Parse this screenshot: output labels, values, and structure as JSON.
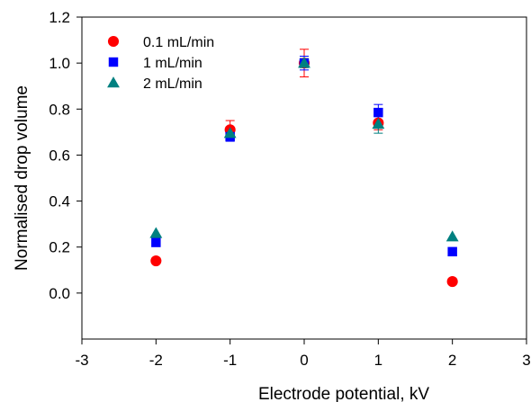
{
  "chart_data": {
    "type": "scatter",
    "xlabel": "Electrode potential, kV",
    "ylabel": "Normalised drop volume",
    "xlim": [
      -3,
      3
    ],
    "ylim": [
      -0.2,
      1.2
    ],
    "xticks": [
      -3,
      -2,
      -1,
      0,
      1,
      2,
      3
    ],
    "yticks": [
      0.0,
      0.2,
      0.4,
      0.6,
      0.8,
      1.0,
      1.2
    ],
    "x_tick_labels": [
      "-3",
      "-2",
      "-1",
      "0",
      "1",
      "2",
      "3"
    ],
    "y_tick_labels": [
      "0.0",
      "0.2",
      "0.4",
      "0.6",
      "0.8",
      "1.0",
      "1.2"
    ],
    "legend_position": "top-left",
    "grid": false,
    "series": [
      {
        "name": "0.1 mL/min",
        "marker": "circle",
        "color": "#ff0000",
        "x": [
          -2,
          -1,
          0,
          1,
          2
        ],
        "y": [
          0.14,
          0.71,
          1.0,
          0.74,
          0.05
        ],
        "err": [
          0.0,
          0.04,
          0.06,
          0.03,
          0.0
        ]
      },
      {
        "name": "1 mL/min",
        "marker": "square",
        "color": "#0000ff",
        "x": [
          -2,
          -1,
          0,
          1,
          2
        ],
        "y": [
          0.22,
          0.68,
          1.0,
          0.785,
          0.18
        ],
        "err": [
          0.0,
          0.02,
          0.03,
          0.035,
          0.0
        ]
      },
      {
        "name": "2 mL/min",
        "marker": "triangle",
        "color": "#008080",
        "x": [
          -2,
          -1,
          0,
          1,
          2
        ],
        "y": [
          0.26,
          0.695,
          1.0,
          0.735,
          0.245
        ],
        "err": [
          0.0,
          0.02,
          0.02,
          0.04,
          0.0
        ]
      }
    ]
  }
}
